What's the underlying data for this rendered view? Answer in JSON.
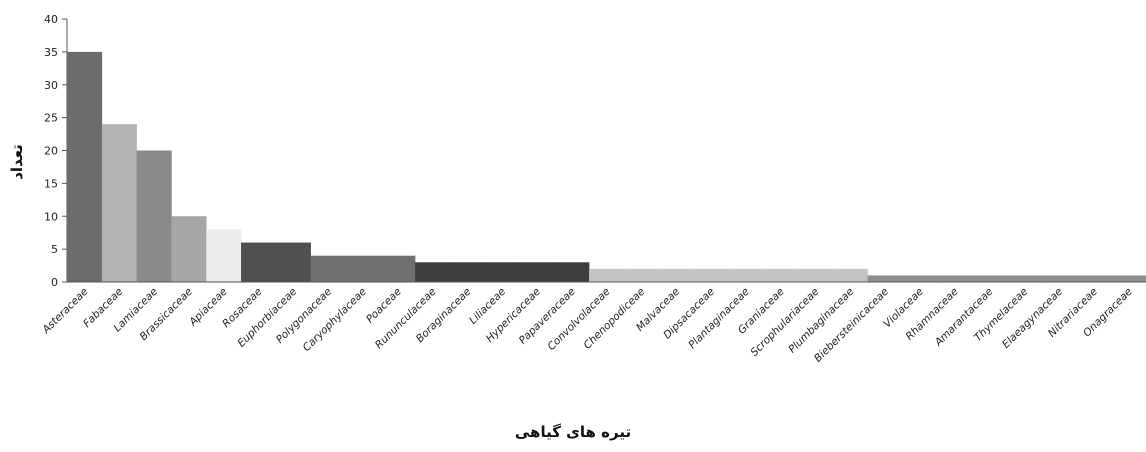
{
  "chart_data": {
    "type": "bar",
    "title": "",
    "xlabel": "تیره های گیاهی",
    "ylabel": "تعداد",
    "ylim": [
      0,
      40
    ],
    "yticks": [
      0,
      5,
      10,
      15,
      20,
      25,
      30,
      35,
      40
    ],
    "grid": false,
    "categories": [
      "Asteraceae",
      "Fabaceae",
      "Lamiaceae",
      "Brassicaceae",
      "Apiaceae",
      "Rosaceae",
      "Euphorbiaceae",
      "Polygonaceae",
      "Caryophylaceae",
      "Poaceae",
      "Rununculaceae",
      "Boraginaceae",
      "Liliaceae",
      "Hypericaceae",
      "Papaveraceae",
      "Convolvolaceae",
      "Chenopodiceae",
      "Malvaceae",
      "Dipsacaceae",
      "Plantaginaceae",
      "Graniaceae",
      "Scrophulariaceae",
      "Plumbaginaceae",
      "Biebersteinicaceae",
      "Violaceae",
      "Rhamnaceae",
      "Amarantaceae",
      "Thymelaceae",
      "Elaeagynaceae",
      "Nitrariaceae",
      "Onagraceae"
    ],
    "values": [
      35,
      24,
      20,
      10,
      8,
      6,
      6,
      4,
      4,
      4,
      3,
      3,
      3,
      3,
      3,
      2,
      2,
      2,
      2,
      2,
      2,
      2,
      2,
      1,
      1,
      1,
      1,
      1,
      1,
      1,
      1
    ],
    "colors": [
      "#6b6b6b",
      "#b3b3b3",
      "#8a8a8a",
      "#a6a6a6",
      "#ececec",
      "#505050",
      "#505050",
      "#707070",
      "#707070",
      "#707070",
      "#3e3e3e",
      "#3e3e3e",
      "#3e3e3e",
      "#3e3e3e",
      "#3e3e3e",
      "#c4c4c4",
      "#c4c4c4",
      "#c4c4c4",
      "#c4c4c4",
      "#c4c4c4",
      "#c4c4c4",
      "#c4c4c4",
      "#c4c4c4",
      "#8e8e8e",
      "#8e8e8e",
      "#8e8e8e",
      "#8e8e8e",
      "#8e8e8e",
      "#8e8e8e",
      "#8e8e8e",
      "#8e8e8e"
    ]
  }
}
